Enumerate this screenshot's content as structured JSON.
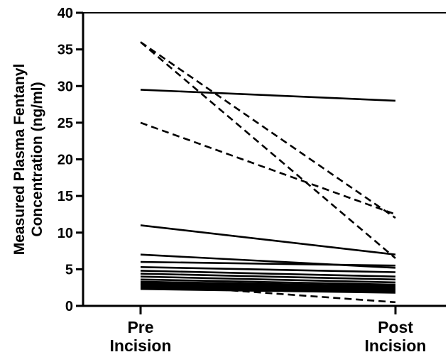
{
  "chart_data": {
    "type": "line",
    "categories": [
      [
        "Pre",
        "Incision"
      ],
      [
        "Post",
        "Incision"
      ]
    ],
    "ylabel_lines": [
      "Measured Plasma Fentanyl",
      "Concentration (ng/ml)"
    ],
    "ylim": [
      0,
      40
    ],
    "yticks": [
      "0",
      "5",
      "10",
      "15",
      "20",
      "25",
      "30",
      "35",
      "40"
    ],
    "grid": false,
    "legend": "none",
    "series": [
      {
        "values": [
          36,
          6.5
        ],
        "style": "dashed"
      },
      {
        "values": [
          36,
          12
        ],
        "style": "dashed"
      },
      {
        "values": [
          25,
          12.5
        ],
        "style": "dashed"
      },
      {
        "values": [
          29.5,
          28
        ],
        "style": "solid"
      },
      {
        "values": [
          11,
          7
        ],
        "style": "solid"
      },
      {
        "values": [
          7,
          5.2
        ],
        "style": "solid"
      },
      {
        "values": [
          6,
          5.5
        ],
        "style": "solid"
      },
      {
        "values": [
          5.3,
          4.6
        ],
        "style": "solid"
      },
      {
        "values": [
          4.8,
          4.0
        ],
        "style": "solid"
      },
      {
        "values": [
          4.4,
          3.6
        ],
        "style": "solid"
      },
      {
        "values": [
          4.0,
          3.2
        ],
        "style": "solid"
      },
      {
        "values": [
          3.6,
          2.9
        ],
        "style": "solid"
      },
      {
        "values": [
          3.3,
          2.7
        ],
        "style": "solid"
      },
      {
        "values": [
          3.1,
          2.5
        ],
        "style": "solid"
      },
      {
        "values": [
          2.9,
          2.3
        ],
        "style": "solid"
      },
      {
        "values": [
          2.7,
          2.1
        ],
        "style": "solid"
      },
      {
        "values": [
          2.5,
          1.9
        ],
        "style": "solid"
      },
      {
        "values": [
          2.3,
          1.8
        ],
        "style": "solid"
      },
      {
        "values": [
          3.0,
          0.5
        ],
        "style": "dashed"
      }
    ]
  }
}
